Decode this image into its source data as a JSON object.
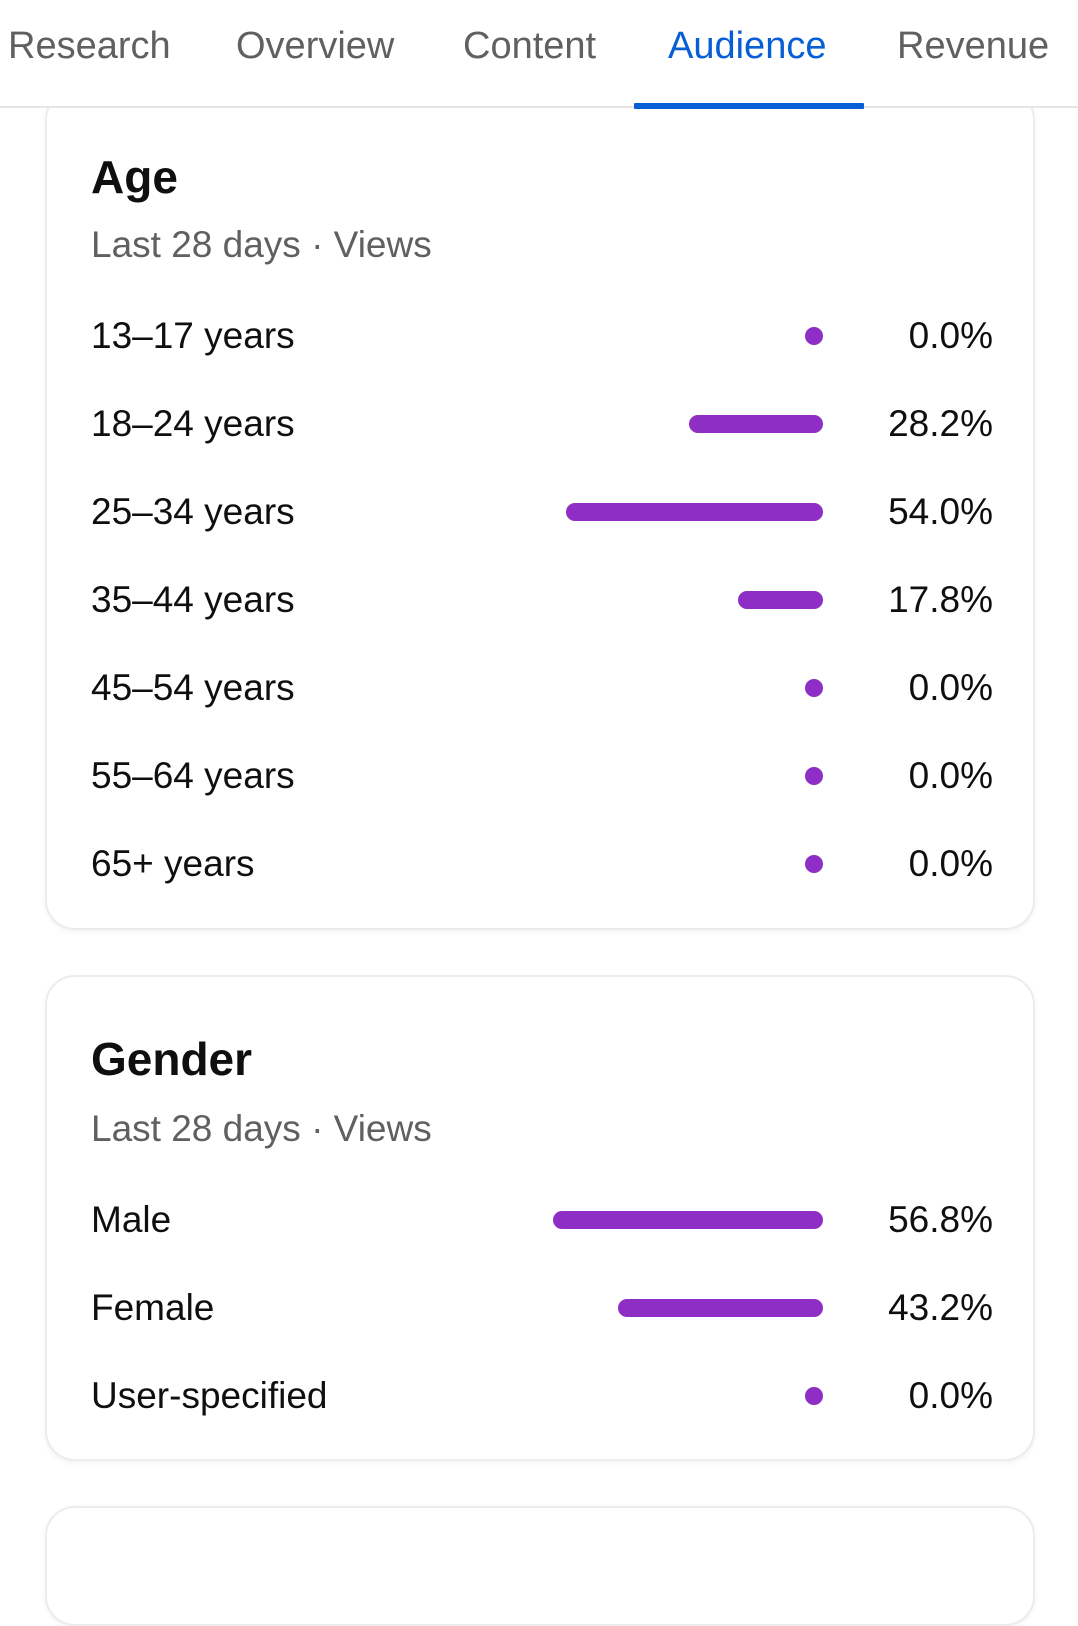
{
  "tabs": [
    {
      "label": "Research",
      "active": false
    },
    {
      "label": "Overview",
      "active": false
    },
    {
      "label": "Content",
      "active": false
    },
    {
      "label": "Audience",
      "active": true
    },
    {
      "label": "Revenue",
      "active": false
    }
  ],
  "colors": {
    "accent": "#065fd4",
    "bar": "#8e2ec4",
    "secondary_text": "#606060"
  },
  "age": {
    "title": "Age",
    "subtitle": "Last 28 days · Views",
    "rows": [
      {
        "label": "13–17 years",
        "value": "0.0%",
        "percent": 0.0
      },
      {
        "label": "18–24 years",
        "value": "28.2%",
        "percent": 28.2
      },
      {
        "label": "25–34 years",
        "value": "54.0%",
        "percent": 54.0
      },
      {
        "label": "35–44 years",
        "value": "17.8%",
        "percent": 17.8
      },
      {
        "label": "45–54 years",
        "value": "0.0%",
        "percent": 0.0
      },
      {
        "label": "55–64 years",
        "value": "0.0%",
        "percent": 0.0
      },
      {
        "label": "65+ years",
        "value": "0.0%",
        "percent": 0.0
      }
    ]
  },
  "gender": {
    "title": "Gender",
    "subtitle": "Last 28 days · Views",
    "rows": [
      {
        "label": "Male",
        "value": "56.8%",
        "percent": 56.8
      },
      {
        "label": "Female",
        "value": "43.2%",
        "percent": 43.2
      },
      {
        "label": "User-specified",
        "value": "0.0%",
        "percent": 0.0
      }
    ]
  }
}
